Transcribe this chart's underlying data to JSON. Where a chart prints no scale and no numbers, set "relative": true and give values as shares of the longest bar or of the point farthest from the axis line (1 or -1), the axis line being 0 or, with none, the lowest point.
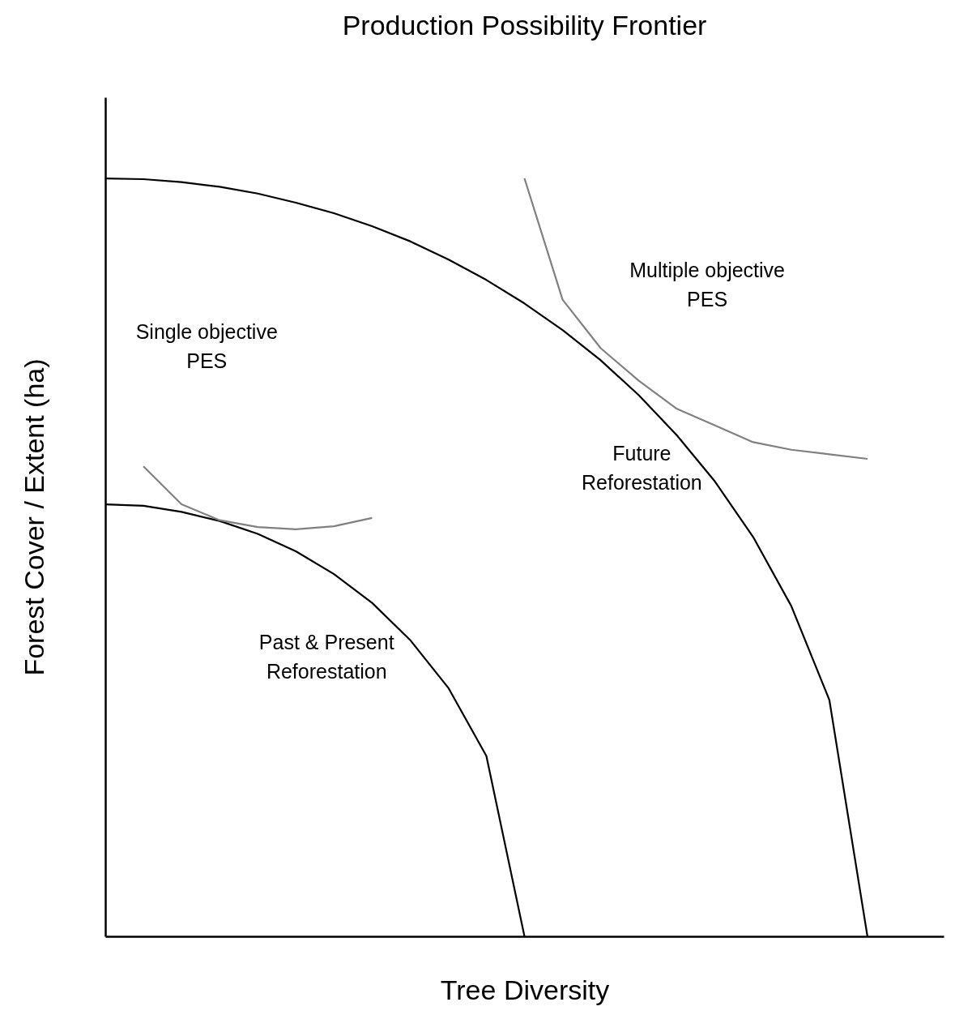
{
  "chart_data": {
    "type": "line",
    "title": "Production Possibility Frontier",
    "xlabel": "Tree Diversity",
    "ylabel": "Forest Cover / Extent (ha)",
    "relative": true,
    "tick_labels": false,
    "grid": false,
    "legend": false,
    "marker": "none",
    "line_style": "solid",
    "categories": [
      null,
      null,
      null,
      null,
      null,
      null,
      null,
      null,
      null,
      null,
      null,
      null,
      null,
      null,
      null,
      null,
      null,
      null,
      null,
      null,
      null,
      null,
      null
    ],
    "series": [
      {
        "color": "#000000",
        "values": [
          1,
          0.999,
          0.995,
          0.989,
          0.98,
          0.968,
          0.954,
          0.937,
          0.917,
          0.893,
          0.866,
          0.835,
          0.8,
          0.76,
          0.714,
          0.661,
          0.6,
          0.527,
          0.436,
          0.312,
          0,
          null,
          null
        ]
      },
      {
        "color": "#000000",
        "values": [
          0.57,
          0.568,
          0.56,
          0.548,
          0.531,
          0.508,
          0.478,
          0.44,
          0.391,
          0.328,
          0.238,
          0,
          null,
          null,
          null,
          null,
          null,
          null,
          null,
          null,
          null,
          null,
          null
        ]
      },
      {
        "color": "#808080",
        "values": [
          null,
          0.62,
          0.57,
          0.549,
          0.54,
          0.537,
          0.541,
          0.552,
          null,
          null,
          null,
          null,
          null,
          null,
          null,
          null,
          null,
          null,
          null,
          null,
          null,
          null,
          null
        ]
      },
      {
        "color": "#808080",
        "values": [
          null,
          null,
          null,
          null,
          null,
          null,
          null,
          null,
          null,
          null,
          null,
          1,
          0.84,
          0.776,
          0.733,
          0.696,
          0.674,
          0.652,
          0.642,
          0.636,
          0.63,
          null,
          null
        ]
      }
    ],
    "annotations": [
      "Single objective\nPES",
      "Multiple objective\nPES",
      "Future\nReforestation",
      "Past & Present\nReforestation"
    ]
  }
}
